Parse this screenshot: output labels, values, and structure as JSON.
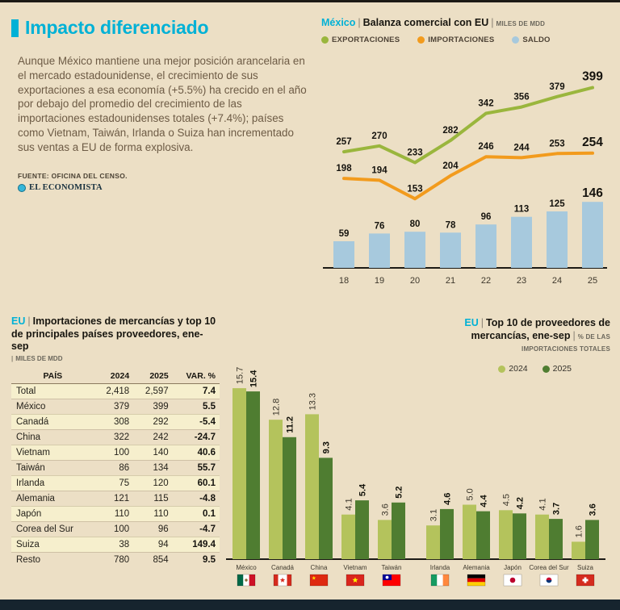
{
  "ui": {
    "sep": "|"
  },
  "meta": {
    "source": "FUENTE: OFICINA DEL CENSO.",
    "brand": "EL ECONOMISTA"
  },
  "header": {
    "title": "Impacto diferenciado",
    "intro": "Aunque México mantiene una mejor posición arancelaria en el mercado estadounidense, el crecimiento de sus exportaciones a esa economía (+5.5%) ha crecido en el año por debajo del promedio del crecimiento de las importaciones estadounidenses totales (+7.4%); países como Vietnam, Taiwán, Irlanda o Suiza han incrementado sus ventas a EU de forma explosiva."
  },
  "colors": {
    "background": "#ecdfc5",
    "accent_cyan": "#00b1d6",
    "text_brown": "#6d5b45",
    "dark": "#17150f",
    "export_green": "#9ab63d",
    "import_orange": "#f29b1d",
    "saldo_blue": "#a7c9dd",
    "bar_2024_green": "#b4c35c",
    "bar_2025_green": "#4f7d31",
    "row_shade": "#f6efcd",
    "footer_navy": "#16242e",
    "brand_dot_blue": "#35b6d9"
  },
  "chart_data": [
    {
      "id": "balanza-comercial",
      "type": "line",
      "region": "México",
      "title": "Balanza comercial con EU",
      "units": "MILES DE MDD",
      "x": [
        "18",
        "19",
        "20",
        "21",
        "22",
        "23",
        "24",
        "25"
      ],
      "legend_position": "top",
      "grid": false,
      "ylim": [
        0,
        420
      ],
      "series": [
        {
          "name": "EXPORTACIONES",
          "kind": "line",
          "color": "#9ab63d",
          "values": [
            257,
            270,
            233,
            282,
            342,
            356,
            379,
            399
          ]
        },
        {
          "name": "IMPORTACIONES",
          "kind": "line",
          "color": "#f29b1d",
          "values": [
            198,
            194,
            153,
            204,
            246,
            244,
            253,
            254
          ]
        },
        {
          "name": "SALDO",
          "kind": "bar",
          "color": "#a7c9dd",
          "values": [
            59,
            76,
            80,
            78,
            96,
            113,
            125,
            146
          ]
        }
      ]
    },
    {
      "id": "top-proveedores",
      "type": "bar",
      "region": "EU",
      "title": "Top 10 de proveedores de mercancías, ene-sep",
      "units": "% DE LAS IMPORTACIONES TOTALES",
      "legend_position": "top-right",
      "grid": false,
      "ylim": [
        0,
        16
      ],
      "cluster_break": 5,
      "categories": [
        "México",
        "Canadá",
        "China",
        "Vietnam",
        "Taiwán",
        "Irlanda",
        "Alemania",
        "Japón",
        "Corea del Sur",
        "Suiza"
      ],
      "flags": [
        "mexico",
        "canada",
        "china",
        "vietnam",
        "taiwan",
        "ireland",
        "germany",
        "japan",
        "south-korea",
        "switzerland"
      ],
      "series": [
        {
          "name": "2024",
          "color": "#b4c35c",
          "values": [
            15.7,
            12.8,
            13.3,
            4.1,
            3.6,
            3.1,
            5.0,
            4.5,
            4.1,
            1.6
          ]
        },
        {
          "name": "2025",
          "color": "#4f7d31",
          "values": [
            15.4,
            11.2,
            9.3,
            5.4,
            5.2,
            4.6,
            4.4,
            4.2,
            3.7,
            3.6
          ]
        }
      ]
    }
  ],
  "table": {
    "region": "EU",
    "title": "Importaciones de mercancías y top 10 de principales países proveedores, ene-sep",
    "units": "MILES DE MDD",
    "headers": [
      "PAÍS",
      "2024",
      "2025",
      "VAR. %"
    ],
    "rows": [
      [
        "Total",
        "2,418",
        "2,597",
        "7.4"
      ],
      [
        "México",
        "379",
        "399",
        "5.5"
      ],
      [
        "Canadá",
        "308",
        "292",
        "-5.4"
      ],
      [
        "China",
        "322",
        "242",
        "-24.7"
      ],
      [
        "Vietnam",
        "100",
        "140",
        "40.6"
      ],
      [
        "Taiwán",
        "86",
        "134",
        "55.7"
      ],
      [
        "Irlanda",
        "75",
        "120",
        "60.1"
      ],
      [
        "Alemania",
        "121",
        "115",
        "-4.8"
      ],
      [
        "Japón",
        "110",
        "110",
        "0.1"
      ],
      [
        "Corea del Sur",
        "100",
        "96",
        "-4.7"
      ],
      [
        "Suiza",
        "38",
        "94",
        "149.4"
      ],
      [
        "Resto",
        "780",
        "854",
        "9.5"
      ]
    ]
  }
}
